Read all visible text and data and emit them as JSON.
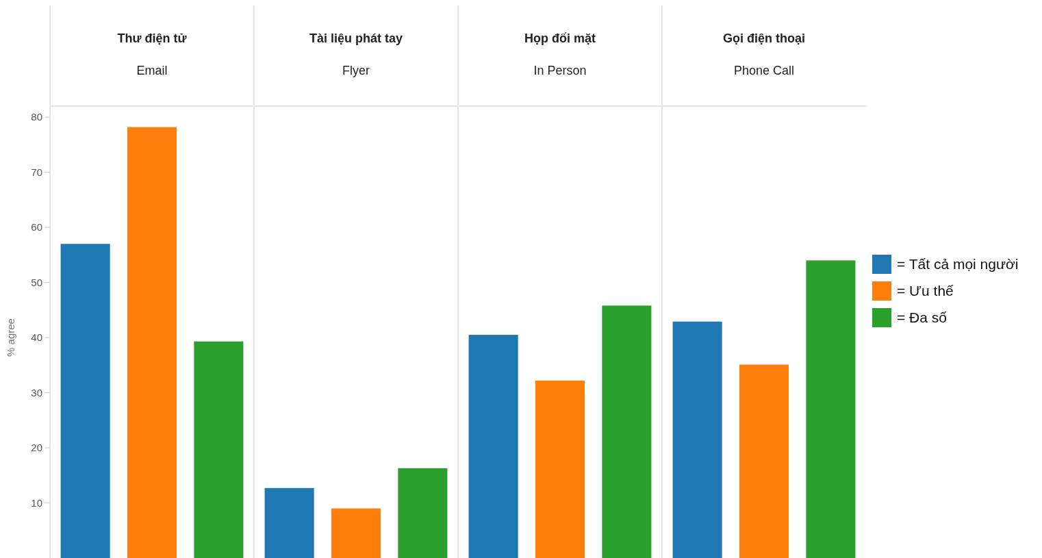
{
  "chart_data": {
    "type": "bar",
    "ylabel": "% agree",
    "categories": [
      "Thư điện tử\nEmail",
      "Tài liệu phát tay\nFlyer",
      "Họp đối mặt\nIn Person",
      "Gọi điện thoại\nPhone Call"
    ],
    "series": [
      {
        "name": "= Tất cả mọi người",
        "color": "#1f77b4",
        "values": [
          57.0,
          12.7,
          40.5,
          42.9
        ]
      },
      {
        "name": "= Ưu thế",
        "color": "#ff7f0e",
        "values": [
          78.2,
          9.0,
          32.2,
          35.1
        ]
      },
      {
        "name": "= Đa số",
        "color": "#2ca02c",
        "values": [
          39.3,
          16.3,
          45.8,
          54.0
        ]
      }
    ],
    "ylim": [
      0,
      82
    ],
    "yticks": [
      10,
      20,
      30,
      40,
      50,
      60,
      70,
      80
    ],
    "legend": "right"
  }
}
